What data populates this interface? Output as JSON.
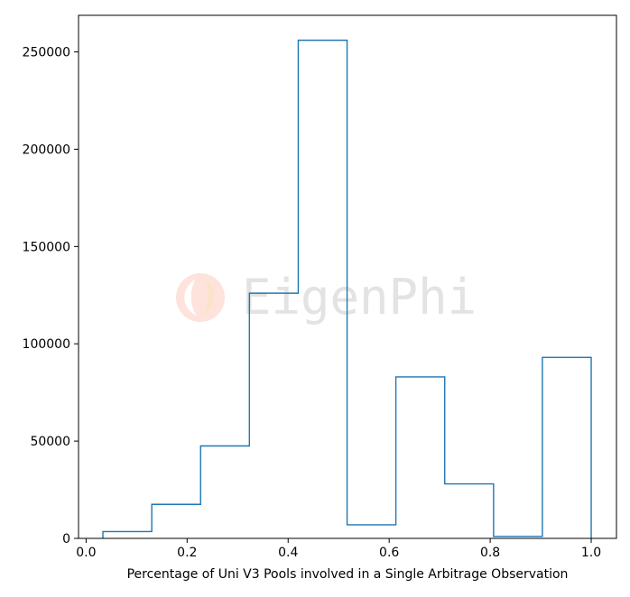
{
  "chart_data": {
    "type": "bar",
    "histtype": "step",
    "series_color": "#1f77b4",
    "bin_edges": [
      0.0333,
      0.13,
      0.2267,
      0.3233,
      0.42,
      0.5167,
      0.6133,
      0.71,
      0.8067,
      0.9033,
      1.0
    ],
    "values": [
      3500,
      17500,
      47500,
      126000,
      256000,
      7000,
      83000,
      28000,
      1000,
      93000
    ],
    "xlabel": "Percentage of Uni V3 Pools involved in a Single Arbitrage Observation",
    "ylabel": "",
    "title": "",
    "xlim": [
      -0.015,
      1.05
    ],
    "ylim": [
      0,
      268800
    ],
    "xticks": [
      0.0,
      0.2,
      0.4,
      0.6,
      0.8,
      1.0
    ],
    "xtick_labels": [
      "0.0",
      "0.2",
      "0.4",
      "0.6",
      "0.8",
      "1.0"
    ],
    "yticks": [
      0,
      50000,
      100000,
      150000,
      200000,
      250000
    ],
    "ytick_labels": [
      "0",
      "50000",
      "100000",
      "150000",
      "200000",
      "250000"
    ],
    "grid": false,
    "legend": "none"
  },
  "watermark": {
    "text": "EigenPhi",
    "logo": "eigenphi-logo-icon",
    "color": "#e3e3e3",
    "logo_colors": [
      "#fcd9cf",
      "#fbe3c4"
    ]
  }
}
